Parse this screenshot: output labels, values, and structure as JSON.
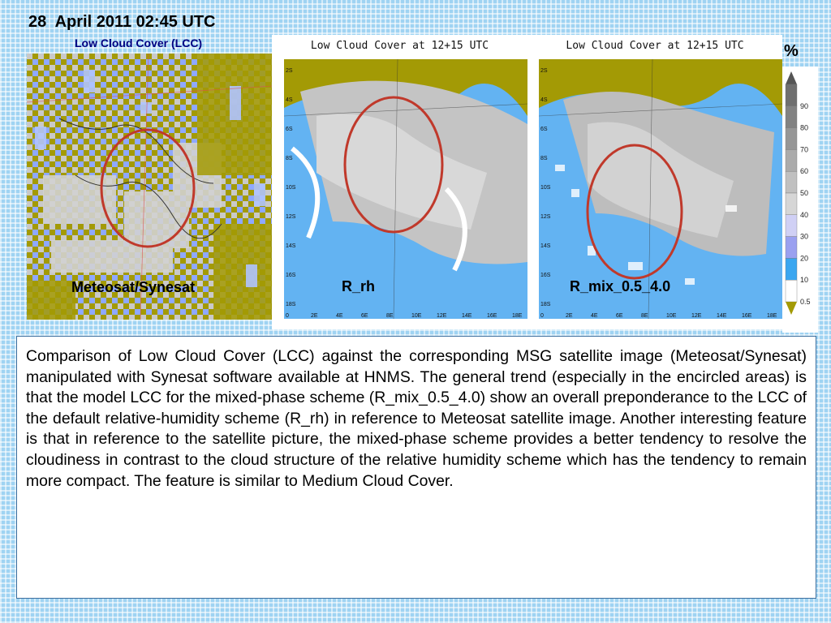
{
  "header": {
    "title": "28  April 2011 02:45 UTC",
    "subtitle": "Low Cloud Cover (LCC)"
  },
  "panels": [
    {
      "label": "Meteosat/Synesat"
    },
    {
      "title": "Low Cloud Cover at 12+15 UTC",
      "label": "R_rh",
      "yticks": [
        "2S",
        "4S",
        "6S",
        "8S",
        "10S",
        "12S",
        "14S",
        "16S",
        "18S"
      ],
      "xticks": [
        "0",
        "2E",
        "4E",
        "6E",
        "8E",
        "10E",
        "12E",
        "14E",
        "16E",
        "18E"
      ]
    },
    {
      "title": "Low Cloud Cover at 12+15 UTC",
      "label": "R_mix_0.5_4.0",
      "yticks": [
        "2S",
        "4S",
        "6S",
        "8S",
        "10S",
        "12S",
        "14S",
        "16S",
        "18S"
      ],
      "xticks": [
        "0",
        "2E",
        "4E",
        "6E",
        "8E",
        "10E",
        "12E",
        "14E",
        "16E",
        "18E"
      ]
    }
  ],
  "legend": {
    "unit": "%",
    "levels": [
      "90",
      "80",
      "70",
      "60",
      "50",
      "40",
      "30",
      "20",
      "10",
      "0.5"
    ],
    "colors": [
      "#6f6f6f",
      "#828282",
      "#969696",
      "#ababab",
      "#c0c0c0",
      "#d6d6d6",
      "#d0d0f5",
      "#9aa0f0",
      "#3aa6f0",
      "#ffffff"
    ]
  },
  "description": "Comparison of Low Cloud Cover (LCC) against the corresponding MSG satellite image (Meteosat/Synesat) manipulated with Synesat software available at HNMS. The general trend (especially in the encircled areas) is that the model LCC for the mixed-phase scheme (R_mix_0.5_4.0) show an overall preponderance to the LCC of the default relative-humidity scheme (R_rh) in reference to Meteosat satellite image. Another interesting feature is that in reference to the satellite picture, the mixed-phase scheme provides a better tendency to resolve the  cloudiness in contrast to the cloud structure of the relative humidity scheme which has the tendency to remain more compact. The feature is similar to Medium Cloud Cover.",
  "colors": {
    "land": "#a39a05",
    "sea": "#63b3f2",
    "circle": "#c0392b"
  }
}
